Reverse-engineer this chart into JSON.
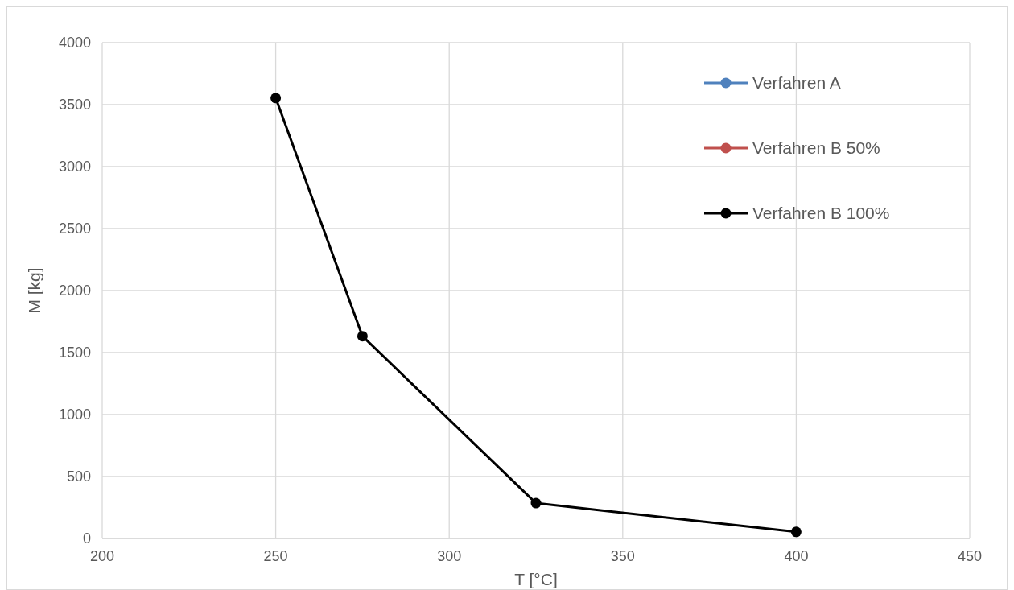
{
  "chart_data": {
    "type": "line",
    "xlabel": "T [°C]",
    "ylabel": "M [kg]",
    "x": [
      250,
      275,
      325,
      400
    ],
    "series": [
      {
        "name": "Verfahren A",
        "color": "#4f81bd",
        "values": [
          null,
          null,
          null,
          null
        ]
      },
      {
        "name": "Verfahren B 50%",
        "color": "#c0504d",
        "values": [
          null,
          null,
          null,
          null
        ]
      },
      {
        "name": "Verfahren B 100%",
        "color": "#000000",
        "values": [
          3553,
          1632,
          285,
          53
        ]
      }
    ],
    "xlim": [
      200,
      450
    ],
    "xticks": [
      200,
      250,
      300,
      350,
      400,
      450
    ],
    "ylim": [
      0,
      4000
    ],
    "yticks": [
      0,
      500,
      1000,
      1500,
      2000,
      2500,
      3000,
      3500,
      4000
    ],
    "grid": true,
    "legend": "top right",
    "marker": "circle",
    "line_style": "solid"
  }
}
